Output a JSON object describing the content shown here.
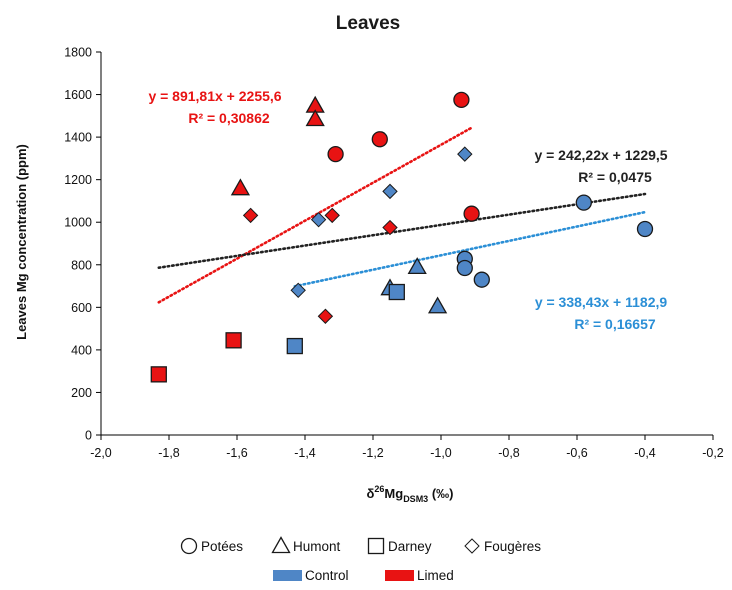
{
  "chart_data": {
    "type": "scatter",
    "title": "Leaves",
    "xlabel_main": "δ",
    "xlabel_sup": "26",
    "xlabel_mid": "Mg",
    "xlabel_sub": "DSM3",
    "xlabel_unit": " (‰)",
    "ylabel": "Leaves Mg concentration  (ppm)",
    "xlim": [
      -2.0,
      -0.2
    ],
    "ylim": [
      0,
      1800
    ],
    "x_ticks": [
      "-2,0",
      "-1,8",
      "-1,6",
      "-1,4",
      "-1,2",
      "-1,0",
      "-0,8",
      "-0,6",
      "-0,4",
      "-0,2"
    ],
    "x_tick_values": [
      -2.0,
      -1.8,
      -1.6,
      -1.4,
      -1.2,
      -1.0,
      -0.8,
      -0.6,
      -0.4,
      -0.2
    ],
    "y_ticks": [
      "0",
      "200",
      "400",
      "600",
      "800",
      "1000",
      "1200",
      "1400",
      "1600",
      "1800"
    ],
    "y_tick_values": [
      0,
      200,
      400,
      600,
      800,
      1000,
      1200,
      1400,
      1600,
      1800
    ],
    "grid": false,
    "colors": {
      "control": "#4f86c6",
      "limed": "#e81313"
    },
    "points": [
      {
        "x": -0.94,
        "y": 1575,
        "shape": "circle",
        "group": "limed"
      },
      {
        "x": -1.18,
        "y": 1390,
        "shape": "circle",
        "group": "limed"
      },
      {
        "x": -1.31,
        "y": 1320,
        "shape": "circle",
        "group": "limed"
      },
      {
        "x": -0.91,
        "y": 1040,
        "shape": "circle",
        "group": "limed"
      },
      {
        "x": -0.58,
        "y": 1092,
        "shape": "circle",
        "group": "control"
      },
      {
        "x": -0.4,
        "y": 968,
        "shape": "circle",
        "group": "control"
      },
      {
        "x": -0.93,
        "y": 828,
        "shape": "circle",
        "group": "control"
      },
      {
        "x": -0.93,
        "y": 785,
        "shape": "circle",
        "group": "control"
      },
      {
        "x": -0.88,
        "y": 730,
        "shape": "circle",
        "group": "control"
      },
      {
        "x": -1.37,
        "y": 1548,
        "shape": "triangle",
        "group": "limed"
      },
      {
        "x": -1.37,
        "y": 1485,
        "shape": "triangle",
        "group": "limed"
      },
      {
        "x": -1.59,
        "y": 1160,
        "shape": "triangle",
        "group": "limed"
      },
      {
        "x": -1.07,
        "y": 790,
        "shape": "triangle",
        "group": "control"
      },
      {
        "x": -1.15,
        "y": 690,
        "shape": "triangle",
        "group": "control"
      },
      {
        "x": -1.01,
        "y": 605,
        "shape": "triangle",
        "group": "control"
      },
      {
        "x": -1.83,
        "y": 285,
        "shape": "square",
        "group": "limed"
      },
      {
        "x": -1.61,
        "y": 445,
        "shape": "square",
        "group": "limed"
      },
      {
        "x": -1.43,
        "y": 418,
        "shape": "square",
        "group": "control"
      },
      {
        "x": -1.13,
        "y": 672,
        "shape": "square",
        "group": "control"
      },
      {
        "x": -1.56,
        "y": 1032,
        "shape": "diamond",
        "group": "limed"
      },
      {
        "x": -1.32,
        "y": 1032,
        "shape": "diamond",
        "group": "limed"
      },
      {
        "x": -1.15,
        "y": 975,
        "shape": "diamond",
        "group": "limed"
      },
      {
        "x": -1.34,
        "y": 558,
        "shape": "diamond",
        "group": "limed"
      },
      {
        "x": -0.93,
        "y": 1320,
        "shape": "diamond",
        "group": "control"
      },
      {
        "x": -1.15,
        "y": 1145,
        "shape": "diamond",
        "group": "control"
      },
      {
        "x": -1.36,
        "y": 1012,
        "shape": "diamond",
        "group": "control"
      },
      {
        "x": -1.42,
        "y": 680,
        "shape": "diamond",
        "group": "control"
      }
    ],
    "trendlines": [
      {
        "key": "limed",
        "slope": 891.81,
        "intercept": 2255.6,
        "x_range": [
          -1.83,
          -0.91
        ],
        "color": "#e81313",
        "equation": "y = 891,81x + 2255,6",
        "r2": "R² = 0,30862"
      },
      {
        "key": "all",
        "slope": 242.22,
        "intercept": 1229.5,
        "x_range": [
          -1.83,
          -0.4
        ],
        "color": "#222222",
        "equation": "y = 242,22x + 1229,5",
        "r2": "R² = 0,0475"
      },
      {
        "key": "control",
        "slope": 338.43,
        "intercept": 1182.9,
        "x_range": [
          -1.43,
          -0.4
        ],
        "color": "#2b8fd6",
        "equation": "y = 338,43x + 1182,9",
        "r2": "R² = 0,16657"
      }
    ],
    "legend": {
      "shapes": [
        {
          "shape": "circle",
          "label": "Potées"
        },
        {
          "shape": "triangle",
          "label": "Humont"
        },
        {
          "shape": "square",
          "label": "Darney"
        },
        {
          "shape": "diamond",
          "label": "Fougères"
        }
      ],
      "groups": [
        {
          "group": "control",
          "label": "Control"
        },
        {
          "group": "limed",
          "label": "Limed"
        }
      ]
    }
  }
}
